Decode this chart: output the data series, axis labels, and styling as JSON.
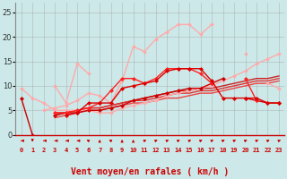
{
  "xlabel": "Vent moyen/en rafales ( km/h )",
  "x": [
    0,
    1,
    2,
    3,
    4,
    5,
    6,
    7,
    8,
    9,
    10,
    11,
    12,
    13,
    14,
    15,
    16,
    17,
    18,
    19,
    20,
    21,
    22,
    23
  ],
  "ylim": [
    0,
    27
  ],
  "xlim": [
    -0.5,
    23.5
  ],
  "yticks": [
    0,
    5,
    10,
    15,
    20,
    25
  ],
  "background_color": "#cce8e8",
  "grid_color": "#aaaaaa",
  "series": [
    {
      "y": [
        7.5,
        0.0,
        null,
        4.0,
        4.5,
        4.5,
        5.0,
        5.0,
        5.5,
        6.0,
        7.0,
        7.5,
        8.0,
        8.5,
        9.0,
        9.5,
        9.5,
        10.5,
        11.5,
        null,
        7.5,
        7.0,
        6.5,
        6.5
      ],
      "color": "#cc0000",
      "lw": 1.0,
      "marker": "D",
      "ms": 2.0,
      "zorder": 5
    },
    {
      "y": [
        null,
        null,
        null,
        4.5,
        4.5,
        5.0,
        5.5,
        5.5,
        6.0,
        6.5,
        7.0,
        7.5,
        8.0,
        8.5,
        9.0,
        9.0,
        9.5,
        9.5,
        10.0,
        10.5,
        11.0,
        11.5,
        11.5,
        12.0
      ],
      "color": "#cc2222",
      "lw": 1.0,
      "marker": null,
      "ms": 0,
      "zorder": 3
    },
    {
      "y": [
        null,
        null,
        null,
        4.0,
        4.5,
        5.0,
        5.5,
        5.5,
        6.0,
        6.5,
        7.0,
        7.0,
        7.5,
        8.0,
        8.5,
        8.5,
        9.0,
        9.0,
        9.5,
        10.0,
        10.5,
        11.0,
        11.0,
        11.5
      ],
      "color": "#dd3333",
      "lw": 1.0,
      "marker": null,
      "ms": 0,
      "zorder": 3
    },
    {
      "y": [
        null,
        null,
        null,
        3.5,
        4.0,
        4.5,
        5.0,
        5.0,
        5.5,
        6.0,
        6.5,
        6.5,
        7.0,
        7.5,
        7.5,
        8.0,
        8.5,
        8.5,
        9.0,
        9.5,
        10.0,
        10.5,
        10.5,
        11.0
      ],
      "color": "#ee4444",
      "lw": 1.0,
      "marker": null,
      "ms": 0,
      "zorder": 3
    },
    {
      "y": [
        9.5,
        7.5,
        6.5,
        5.0,
        5.0,
        5.0,
        5.0,
        4.5,
        4.5,
        5.5,
        6.0,
        6.5,
        7.0,
        8.0,
        8.5,
        9.0,
        9.5,
        10.0,
        11.0,
        12.0,
        13.0,
        14.5,
        15.5,
        16.5
      ],
      "color": "#ffaaaa",
      "lw": 1.0,
      "marker": "D",
      "ms": 1.8,
      "zorder": 4
    },
    {
      "y": [
        null,
        null,
        5.0,
        5.5,
        6.0,
        7.0,
        8.5,
        8.0,
        6.5,
        11.0,
        18.0,
        17.0,
        19.5,
        21.0,
        22.5,
        22.5,
        20.5,
        22.5,
        null,
        null,
        16.5,
        null,
        10.5,
        9.5
      ],
      "color": "#ffaaaa",
      "lw": 1.0,
      "marker": "D",
      "ms": 1.8,
      "zorder": 4
    },
    {
      "y": [
        null,
        null,
        null,
        10.0,
        6.5,
        14.5,
        12.5,
        null,
        null,
        null,
        null,
        null,
        null,
        null,
        null,
        null,
        null,
        null,
        null,
        null,
        null,
        null,
        null,
        null
      ],
      "color": "#ffaaaa",
      "lw": 1.0,
      "marker": "D",
      "ms": 1.8,
      "zorder": 4
    },
    {
      "y": [
        null,
        null,
        null,
        4.5,
        4.5,
        5.0,
        5.5,
        6.5,
        9.0,
        11.5,
        11.5,
        10.5,
        11.5,
        13.5,
        13.5,
        13.5,
        12.5,
        10.5,
        null,
        null,
        11.5,
        7.0,
        null,
        null
      ],
      "color": "#ff2222",
      "lw": 1.0,
      "marker": "D",
      "ms": 2.0,
      "zorder": 5
    },
    {
      "y": [
        null,
        null,
        null,
        null,
        4.0,
        4.5,
        6.5,
        6.5,
        6.5,
        9.5,
        10.0,
        10.5,
        11.0,
        13.0,
        13.5,
        13.5,
        13.5,
        11.0,
        7.5,
        7.5,
        7.5,
        7.5,
        6.5,
        6.5
      ],
      "color": "#dd0000",
      "lw": 1.0,
      "marker": "D",
      "ms": 2.0,
      "zorder": 5
    }
  ],
  "arrow_angles": [
    180,
    270,
    180,
    180,
    180,
    180,
    135,
    90,
    135,
    90,
    90,
    45,
    45,
    45,
    45,
    45,
    45,
    45,
    45,
    45,
    45,
    45,
    45,
    45
  ],
  "xlabel_color": "#cc0000",
  "xlabel_fontsize": 7
}
